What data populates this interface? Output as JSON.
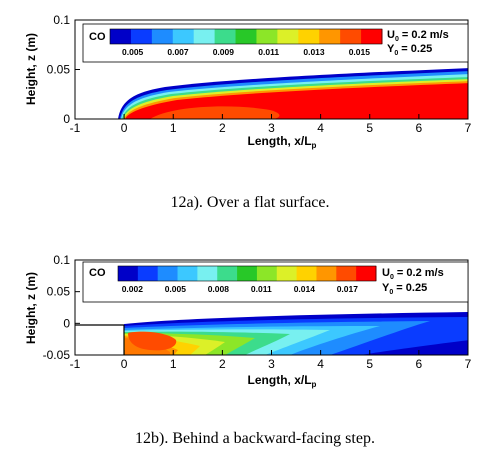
{
  "colors": {
    "scale": [
      "#0000c8",
      "#0a3cff",
      "#1e8cff",
      "#3cc8ff",
      "#78f0f0",
      "#3cdc8c",
      "#28c828",
      "#8ce628",
      "#dcf028",
      "#ffd200",
      "#ff9600",
      "#ff4b00",
      "#ff0000"
    ]
  },
  "chart_data": [
    {
      "type": "heatmap",
      "title": "",
      "xlabel": "Length, x/L",
      "xlabel_sub": "p",
      "ylabel": "Height, z (m)",
      "xlim": [
        -1,
        7
      ],
      "ylim": [
        0,
        0.1
      ],
      "xticks": [
        "-1",
        "0",
        "1",
        "2",
        "3",
        "4",
        "5",
        "6",
        "7"
      ],
      "yticks": [
        "0",
        "0.05",
        "0.1"
      ],
      "legend": {
        "species": "CO",
        "position": "top",
        "min": 0.004,
        "max": 0.016,
        "levels": 13,
        "tick_labels": [
          "0.005",
          "0.007",
          "0.009",
          "0.011",
          "0.013",
          "0.015"
        ]
      },
      "params": {
        "u_label": "U",
        "u_sub": "0",
        "u_value": " = 0.2 m/s",
        "y_label": "Y",
        "y_sub": "0",
        "y_value": " = 0.25"
      },
      "caption": "12a). Over a flat surface.",
      "field": {
        "plume_top": [
          [
            0,
            0.002
          ],
          [
            1,
            0.024
          ],
          [
            2,
            0.032
          ],
          [
            3,
            0.038
          ],
          [
            4,
            0.042
          ],
          [
            5,
            0.045
          ],
          [
            6,
            0.048
          ],
          [
            7,
            0.05
          ]
        ],
        "core_value": 0.016
      }
    },
    {
      "type": "heatmap",
      "title": "",
      "xlabel": "Length, x/L",
      "xlabel_sub": "p",
      "ylabel": "Height, z (m)",
      "xlim": [
        -1,
        7
      ],
      "ylim": [
        -0.05,
        0.1
      ],
      "xticks": [
        "-1",
        "0",
        "1",
        "2",
        "3",
        "4",
        "5",
        "6",
        "7"
      ],
      "yticks": [
        "-0.05",
        "0",
        "0.05",
        "0.1"
      ],
      "legend": {
        "species": "CO",
        "position": "top",
        "min": 0.001,
        "max": 0.019,
        "levels": 13,
        "tick_labels": [
          "0.002",
          "0.005",
          "0.008",
          "0.011",
          "0.014",
          "0.017"
        ]
      },
      "params": {
        "u_label": "U",
        "u_sub": "0",
        "u_value": " = 0.2 m/s",
        "y_label": "Y",
        "y_sub": "0",
        "y_value": " = 0.25"
      },
      "caption": "12b). Behind a backward-facing step.",
      "field": {
        "step_height": 0,
        "bottom": -0.05,
        "plume_top": [
          [
            0,
            0.0
          ],
          [
            2,
            0.006
          ],
          [
            4,
            0.01
          ],
          [
            7,
            0.017
          ]
        ]
      }
    }
  ]
}
